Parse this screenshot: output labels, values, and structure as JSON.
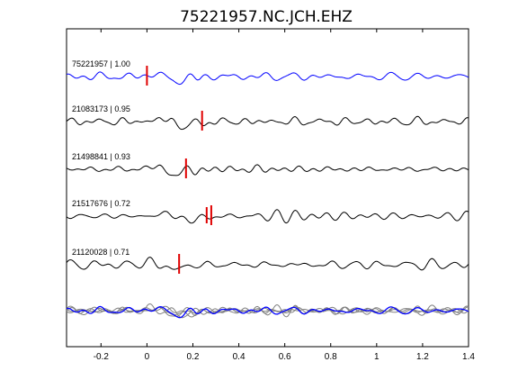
{
  "chart_data": {
    "type": "line",
    "title": "75221957.NC.JCH.EHZ",
    "xlabel": "",
    "ylabel": "",
    "xlim": [
      -0.35,
      1.4
    ],
    "xticks": [
      "-0.2",
      "0",
      "0.2",
      "0.4",
      "0.6",
      "0.8",
      "1",
      "1.2",
      "1.4"
    ],
    "grid": false,
    "colors": {
      "main_trace": "#0000ff",
      "trace": "#000000",
      "pick": "#e00000",
      "stack": "#808080",
      "axes": "#000000"
    },
    "traces": [
      {
        "label": "75221957 | 1.00",
        "pick": 0.0,
        "color": "#0000ff"
      },
      {
        "label": "21083173 | 0.95",
        "pick": 0.24,
        "color": "#000000"
      },
      {
        "label": "21498841 | 0.93",
        "pick": 0.17,
        "color": "#000000"
      },
      {
        "label": "21517676 | 0.72",
        "pick": 0.28,
        "color": "#000000",
        "extra_pick": 0.26
      },
      {
        "label": "21120028 | 0.71",
        "pick": 0.14,
        "color": "#000000"
      }
    ],
    "stack": {
      "description_series": 5
    }
  }
}
